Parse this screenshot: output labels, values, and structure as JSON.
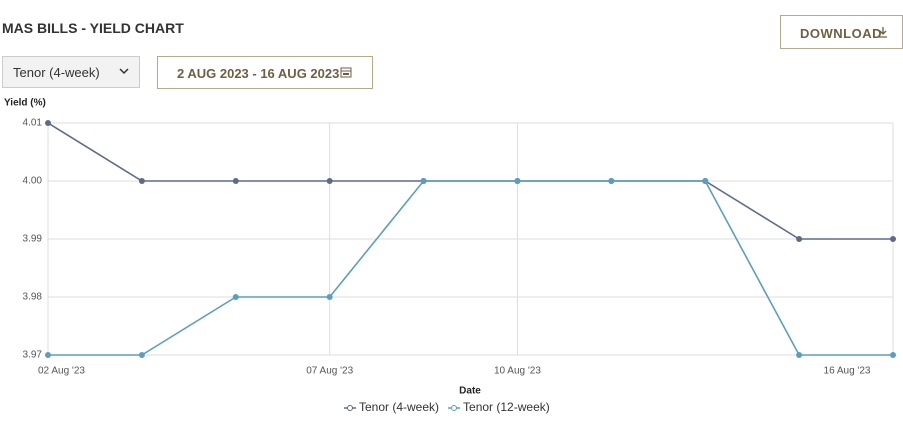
{
  "controls": {
    "dropdown": "Tenor (4-week)",
    "date_range": "2 AUG 2023 - 16 AUG 2023",
    "download": "DOWNLOAD"
  },
  "chart_data": {
    "type": "line",
    "title": "MAS BILLS - YIELD CHART",
    "y_label": "Yield (%)",
    "x_label": "Date",
    "categories": [
      "02 Aug '23",
      null,
      null,
      "07 Aug '23",
      null,
      "10 Aug '23",
      null,
      null,
      null,
      "16 Aug '23"
    ],
    "series": [
      {
        "name": "Tenor (4-week)",
        "color": "#5d6b8a",
        "values": [
          4.01,
          4.0,
          4.0,
          4.0,
          4.0,
          4.0,
          4.0,
          4.0,
          3.99,
          3.99
        ]
      },
      {
        "name": "Tenor (12-week)",
        "color": "#5a9ec0",
        "values": [
          3.97,
          3.97,
          3.98,
          3.98,
          4.0,
          4.0,
          4.0,
          4.0,
          3.97,
          3.97
        ]
      }
    ],
    "ylim": [
      3.97,
      4.01
    ],
    "yticks": [
      3.97,
      3.98,
      3.99,
      {
        "value": 4.0,
        "label": "4.00"
      },
      4.01
    ],
    "grid": true
  }
}
